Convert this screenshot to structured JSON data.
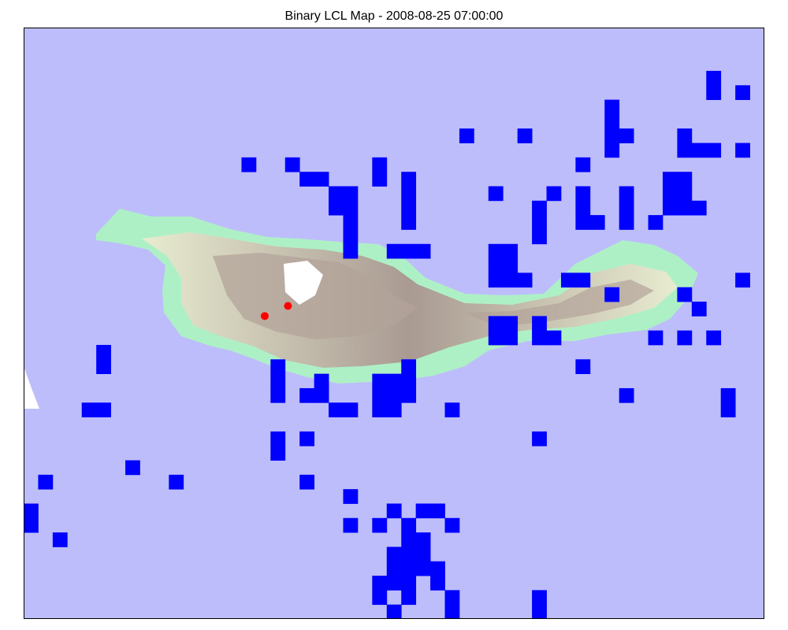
{
  "title": "Binary LCL Map - 2008-08-25 07:00:00",
  "colors": {
    "ocean": "#bdbdfb",
    "lcl_cell": "#0000ff",
    "station": "#ff0000",
    "frame": "#000000",
    "land_low": "#aef0c6",
    "land_mid": "#f4f8d6",
    "land_high": "#b3a39a",
    "land_peak": "#ffffff"
  },
  "grid": {
    "cols": 51,
    "rows": 41,
    "cells": [
      [
        47,
        3
      ],
      [
        47,
        4
      ],
      [
        49,
        4
      ],
      [
        40,
        5
      ],
      [
        30,
        7
      ],
      [
        34,
        7
      ],
      [
        40,
        7
      ],
      [
        41,
        7
      ],
      [
        45,
        7
      ],
      [
        40,
        8
      ],
      [
        45,
        8
      ],
      [
        46,
        8
      ],
      [
        47,
        8
      ],
      [
        49,
        8
      ],
      [
        15,
        9
      ],
      [
        18,
        9
      ],
      [
        38,
        9
      ],
      [
        24,
        9
      ],
      [
        19,
        10
      ],
      [
        20,
        10
      ],
      [
        24,
        10
      ],
      [
        26,
        10
      ],
      [
        26,
        11
      ],
      [
        22,
        11
      ],
      [
        21,
        11
      ],
      [
        32,
        11
      ],
      [
        36,
        11
      ],
      [
        38,
        11
      ],
      [
        41,
        11
      ],
      [
        44,
        11
      ],
      [
        45,
        11
      ],
      [
        21,
        12
      ],
      [
        22,
        12
      ],
      [
        26,
        12
      ],
      [
        35,
        12
      ],
      [
        26,
        13
      ],
      [
        22,
        13
      ],
      [
        38,
        13
      ],
      [
        41,
        13
      ],
      [
        38,
        12
      ],
      [
        41,
        12
      ],
      [
        44,
        12
      ],
      [
        45,
        12
      ],
      [
        46,
        12
      ],
      [
        44,
        10
      ],
      [
        45,
        10
      ],
      [
        40,
        6
      ],
      [
        35,
        13
      ],
      [
        22,
        14
      ],
      [
        39,
        13
      ],
      [
        43,
        13
      ],
      [
        35,
        14
      ],
      [
        22,
        15
      ],
      [
        27,
        15
      ],
      [
        32,
        15
      ],
      [
        33,
        15
      ],
      [
        32,
        16
      ],
      [
        33,
        16
      ],
      [
        32,
        17
      ],
      [
        33,
        17
      ],
      [
        34,
        17
      ],
      [
        37,
        17
      ],
      [
        38,
        17
      ],
      [
        49,
        17
      ],
      [
        45,
        18
      ],
      [
        25,
        15
      ],
      [
        26,
        15
      ],
      [
        40,
        18
      ],
      [
        46,
        19
      ],
      [
        35,
        20
      ],
      [
        43,
        21
      ],
      [
        45,
        21
      ],
      [
        47,
        21
      ],
      [
        32,
        20
      ],
      [
        33,
        20
      ],
      [
        32,
        21
      ],
      [
        33,
        21
      ],
      [
        35,
        21
      ],
      [
        36,
        21
      ],
      [
        5,
        22
      ],
      [
        5,
        23
      ],
      [
        17,
        23
      ],
      [
        26,
        23
      ],
      [
        38,
        23
      ],
      [
        24,
        24
      ],
      [
        20,
        24
      ],
      [
        25,
        24
      ],
      [
        26,
        24
      ],
      [
        17,
        24
      ],
      [
        17,
        25
      ],
      [
        24,
        25
      ],
      [
        25,
        25
      ],
      [
        26,
        25
      ],
      [
        19,
        25
      ],
      [
        20,
        25
      ],
      [
        4,
        26
      ],
      [
        5,
        26
      ],
      [
        21,
        26
      ],
      [
        22,
        26
      ],
      [
        48,
        25
      ],
      [
        48,
        26
      ],
      [
        41,
        25
      ],
      [
        25,
        26
      ],
      [
        24,
        26
      ],
      [
        29,
        26
      ],
      [
        35,
        28
      ],
      [
        17,
        28
      ],
      [
        19,
        28
      ],
      [
        17,
        29
      ],
      [
        7,
        30
      ],
      [
        1,
        31
      ],
      [
        10,
        31
      ],
      [
        19,
        31
      ],
      [
        22,
        32
      ],
      [
        0,
        33
      ],
      [
        0,
        34
      ],
      [
        25,
        33
      ],
      [
        27,
        33
      ],
      [
        28,
        33
      ],
      [
        22,
        34
      ],
      [
        24,
        34
      ],
      [
        26,
        34
      ],
      [
        29,
        34
      ],
      [
        26,
        35
      ],
      [
        27,
        35
      ],
      [
        2,
        35
      ],
      [
        25,
        36
      ],
      [
        26,
        36
      ],
      [
        27,
        36
      ],
      [
        25,
        37
      ],
      [
        26,
        37
      ],
      [
        27,
        37
      ],
      [
        28,
        37
      ],
      [
        24,
        38
      ],
      [
        25,
        38
      ],
      [
        26,
        38
      ],
      [
        28,
        38
      ],
      [
        24,
        39
      ],
      [
        26,
        39
      ],
      [
        29,
        39
      ],
      [
        25,
        40
      ],
      [
        29,
        40
      ],
      [
        35,
        39
      ],
      [
        35,
        40
      ]
    ]
  },
  "stations": [
    {
      "name": "station-1",
      "lon_idx": 18.2,
      "lat_idx": 19.3
    },
    {
      "name": "station-2",
      "lon_idx": 16.6,
      "lat_idx": 20.0
    }
  ]
}
